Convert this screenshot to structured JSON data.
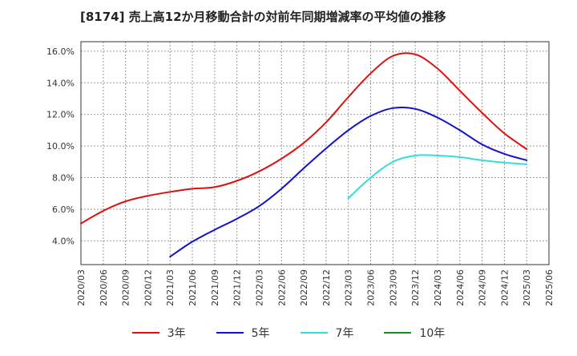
{
  "title": "[8174]  売上高12か月移動合計の対前年同期増減率の平均値の推移",
  "chart_data": {
    "type": "line",
    "title": "[8174]  売上高12か月移動合計の対前年同期増減率の平均値の推移",
    "xlabel": "",
    "ylabel": "",
    "y_unit": "%",
    "ylim": [
      2.5,
      16.6
    ],
    "grid": true,
    "legend": "bottom",
    "x_ticks": [
      "2020/03",
      "2020/06",
      "2020/09",
      "2020/12",
      "2021/03",
      "2021/06",
      "2021/09",
      "2021/12",
      "2022/03",
      "2022/06",
      "2022/09",
      "2022/12",
      "2023/03",
      "2023/06",
      "2023/09",
      "2023/12",
      "2024/03",
      "2024/06",
      "2024/09",
      "2024/12",
      "2025/03",
      "2025/06"
    ],
    "y_ticks": [
      4.0,
      6.0,
      8.0,
      10.0,
      12.0,
      14.0,
      16.0
    ],
    "y_tick_labels": [
      "4.0%",
      "6.0%",
      "8.0%",
      "10.0%",
      "12.0%",
      "14.0%",
      "16.0%"
    ],
    "series": [
      {
        "name": "3年",
        "color": "#dd1111",
        "x": [
          "2020/03",
          "2020/06",
          "2020/09",
          "2020/12",
          "2021/03",
          "2021/06",
          "2021/09",
          "2021/12",
          "2022/03",
          "2022/06",
          "2022/09",
          "2022/12",
          "2023/03",
          "2023/06",
          "2023/09",
          "2023/12",
          "2024/03",
          "2024/06",
          "2024/09",
          "2024/12",
          "2025/03"
        ],
        "values": [
          5.1,
          5.9,
          6.5,
          6.85,
          7.1,
          7.3,
          7.4,
          7.8,
          8.4,
          9.2,
          10.2,
          11.5,
          13.1,
          14.6,
          15.7,
          15.8,
          14.9,
          13.5,
          12.1,
          10.8,
          9.8
        ]
      },
      {
        "name": "5年",
        "color": "#1111cc",
        "x": [
          "2021/03",
          "2021/06",
          "2021/09",
          "2021/12",
          "2022/03",
          "2022/06",
          "2022/09",
          "2022/12",
          "2023/03",
          "2023/06",
          "2023/09",
          "2023/12",
          "2024/03",
          "2024/06",
          "2024/09",
          "2024/12",
          "2025/03"
        ],
        "values": [
          3.0,
          3.95,
          4.7,
          5.4,
          6.2,
          7.3,
          8.6,
          9.85,
          11.0,
          11.9,
          12.4,
          12.35,
          11.8,
          11.0,
          10.1,
          9.5,
          9.1
        ]
      },
      {
        "name": "7年",
        "color": "#33dddd",
        "x": [
          "2023/03",
          "2023/06",
          "2023/09",
          "2023/12",
          "2024/03",
          "2024/06",
          "2024/09",
          "2024/12",
          "2025/03"
        ],
        "values": [
          6.7,
          8.0,
          9.0,
          9.4,
          9.4,
          9.3,
          9.1,
          8.95,
          8.85
        ]
      },
      {
        "name": "10年",
        "color": "#228822",
        "x": [],
        "values": []
      }
    ]
  }
}
